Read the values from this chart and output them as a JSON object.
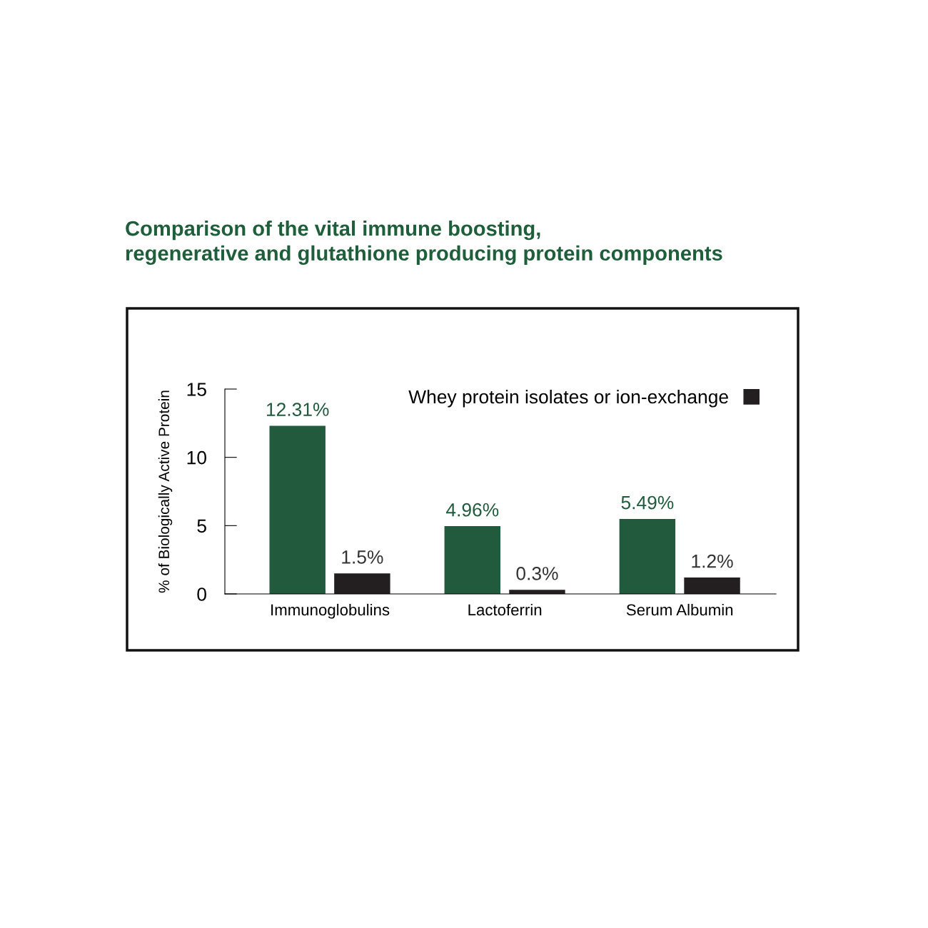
{
  "chart_data": {
    "type": "bar",
    "title": "Comparison of the vital immune boosting,\nregenerative and glutathione producing protein components",
    "ylabel": "% of Biologically Active Protein",
    "categories": [
      "Immunoglobulins",
      "Lactoferrin",
      "Serum Albumin"
    ],
    "series": [
      {
        "color": "#215a3c",
        "values": [
          12.31,
          4.96,
          5.49
        ],
        "value_labels": [
          "12.31%",
          "4.96%",
          "5.49%"
        ]
      },
      {
        "name": "Whey protein isolates or ion-exchange",
        "color": "#231f20",
        "values": [
          1.5,
          0.3,
          1.2
        ],
        "value_labels": [
          "1.5%",
          "0.3%",
          "1.2%"
        ]
      }
    ],
    "ylim": [
      0,
      15
    ],
    "yticks": [
      0,
      5,
      10,
      15
    ],
    "grid": false,
    "legend": "top right"
  }
}
